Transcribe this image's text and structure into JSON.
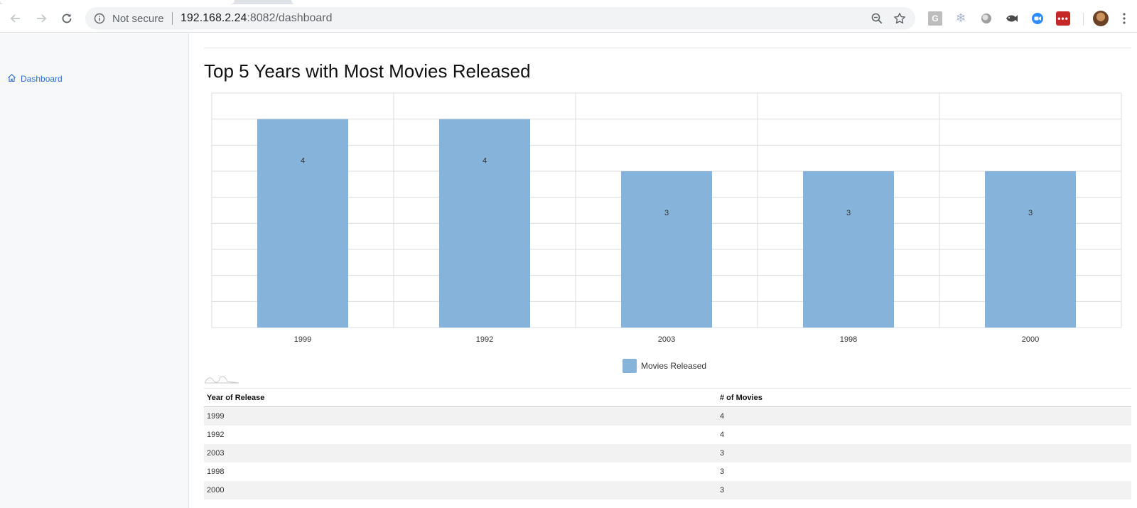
{
  "browser": {
    "security_label": "Not secure",
    "url_host": "192.168.2.24",
    "url_rest": ":8082/dashboard",
    "extension_g_label": "G",
    "extension_red_label": "•••"
  },
  "sidebar": {
    "items": [
      {
        "label": "Dashboard",
        "icon": "home-icon"
      }
    ]
  },
  "main": {
    "title": "Top 5 Years with Most Movies Released"
  },
  "chart_data": {
    "type": "bar",
    "categories": [
      "1999",
      "1992",
      "2003",
      "1998",
      "2000"
    ],
    "series": [
      {
        "name": "Movies Released",
        "values": [
          4,
          4,
          3,
          3,
          3
        ],
        "color": "#85b3d9"
      }
    ],
    "ylim": [
      0,
      4.5
    ],
    "grid": true,
    "legend_position": "bottom-center",
    "data_labels": true
  },
  "table": {
    "headers": [
      "Year of Release",
      "# of Movies"
    ],
    "rows": [
      [
        "1999",
        "4"
      ],
      [
        "1992",
        "4"
      ],
      [
        "2003",
        "3"
      ],
      [
        "1998",
        "3"
      ],
      [
        "2000",
        "3"
      ]
    ]
  }
}
